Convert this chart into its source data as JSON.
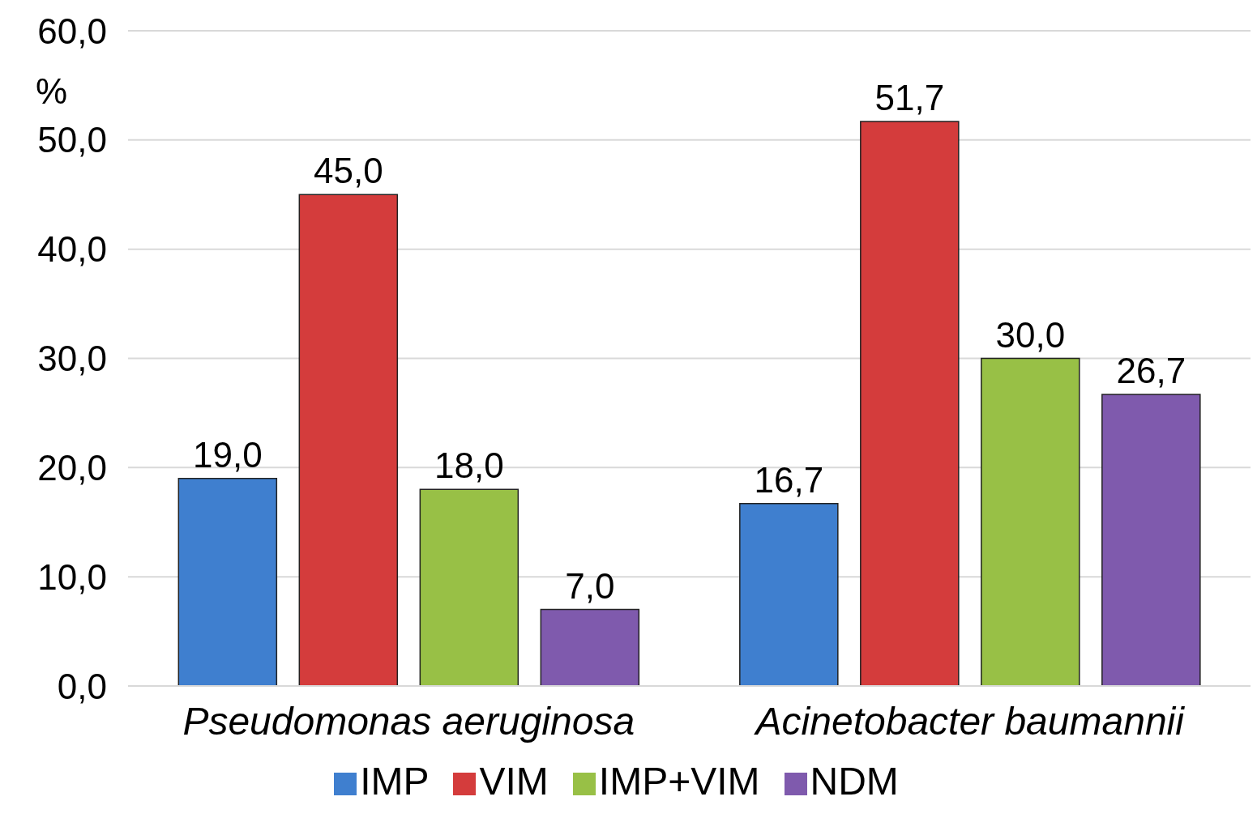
{
  "chart_data": {
    "type": "bar",
    "ylabel": "%",
    "categories": [
      "Pseudomonas aeruginosa",
      "Acinetobacter baumannii"
    ],
    "series": [
      {
        "name": "IMP",
        "color": "#3f7fcf",
        "values": [
          19.0,
          16.7
        ],
        "value_labels": [
          "19,0",
          "16,7"
        ]
      },
      {
        "name": "VIM",
        "color": "#d43c3c",
        "values": [
          45.0,
          51.7
        ],
        "value_labels": [
          "45,0",
          "51,7"
        ]
      },
      {
        "name": "IMP+VIM",
        "color": "#98c046",
        "values": [
          18.0,
          30.0
        ],
        "value_labels": [
          "18,0",
          "30,0"
        ]
      },
      {
        "name": "NDM",
        "color": "#7f5aad",
        "values": [
          7.0,
          26.7
        ],
        "value_labels": [
          "7,0",
          "26,7"
        ]
      }
    ],
    "ylim": [
      0,
      60
    ],
    "yticks": [
      {
        "value": 0,
        "label": "0,0"
      },
      {
        "value": 10,
        "label": "10,0"
      },
      {
        "value": 20,
        "label": "20,0"
      },
      {
        "value": 30,
        "label": "30,0"
      },
      {
        "value": 40,
        "label": "40,0"
      },
      {
        "value": 50,
        "label": "50,0"
      },
      {
        "value": 60,
        "label": "60,0"
      }
    ],
    "grid": "y",
    "legend": "bottom"
  }
}
